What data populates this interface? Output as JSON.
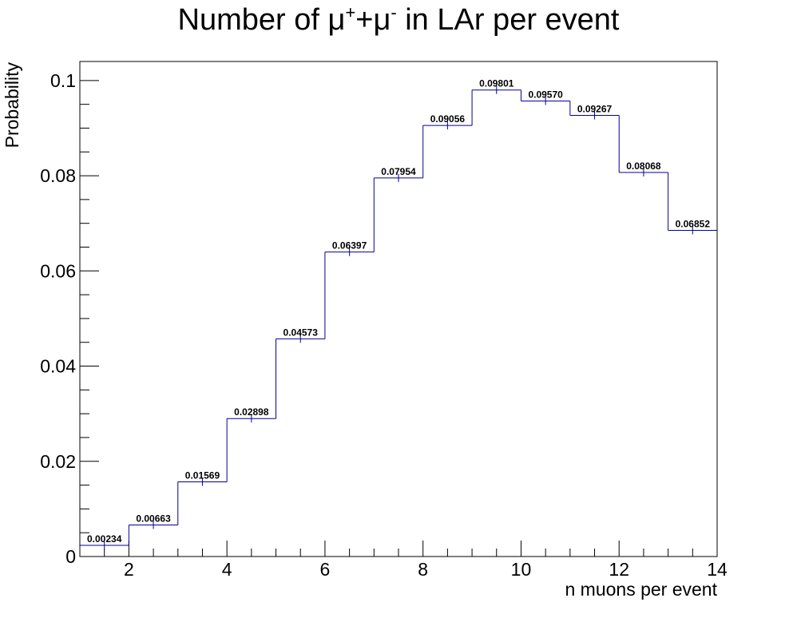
{
  "chart_data": {
    "type": "bar",
    "style": "step-histogram",
    "title": {
      "prefix": "Number of ",
      "mu1": "μ",
      "sup1": "+",
      "plus": "+",
      "mu2": "μ",
      "sup2": "-",
      "suffix": " in LAr per event"
    },
    "xlabel": "n muons per event",
    "ylabel": "Probability",
    "xlim": [
      1,
      14
    ],
    "ylim": [
      0,
      0.104
    ],
    "x_ticks": [
      2,
      4,
      6,
      8,
      10,
      12,
      14
    ],
    "x_tick_labels": [
      "2",
      "4",
      "6",
      "8",
      "10",
      "12",
      "14"
    ],
    "y_ticks": [
      0,
      0.02,
      0.04,
      0.06,
      0.08,
      0.1
    ],
    "y_tick_labels": [
      "0",
      "0.02",
      "0.04",
      "0.06",
      "0.08",
      "0.1"
    ],
    "bin_edges": [
      1,
      2,
      3,
      4,
      5,
      6,
      7,
      8,
      9,
      10,
      11,
      12,
      13,
      14
    ],
    "values": [
      0.00234,
      0.00663,
      0.01569,
      0.02898,
      0.04573,
      0.06397,
      0.07954,
      0.09056,
      0.09801,
      0.0957,
      0.09267,
      0.08068,
      0.06852
    ],
    "value_labels": [
      "0.00234",
      "0.00663",
      "0.01569",
      "0.02898",
      "0.04573",
      "0.06397",
      "0.07954",
      "0.09056",
      "0.09801",
      "0.09570",
      "0.09267",
      "0.08068",
      "0.06852"
    ],
    "line_color": "#000099",
    "grid": false,
    "legend": "none"
  }
}
